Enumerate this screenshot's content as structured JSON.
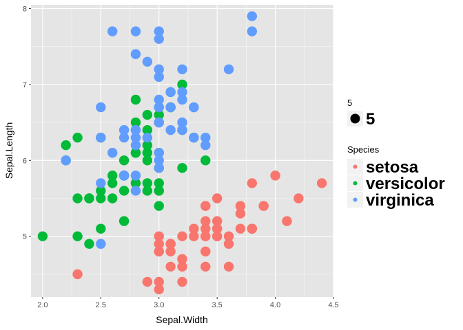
{
  "chart_data": {
    "type": "scatter",
    "xlabel": "Sepal.Width",
    "ylabel": "Sepal.Length",
    "xlim": [
      1.9,
      4.5
    ],
    "ylim": [
      4.2,
      8.05
    ],
    "x_ticks": [
      "2.0",
      "2.5",
      "3.0",
      "3.5",
      "4.0",
      "4.5"
    ],
    "y_ticks": [
      "5",
      "6",
      "7",
      "8"
    ],
    "grid": true,
    "panel_background": "#e5e5e5",
    "grid_color": "#ffffff",
    "legend_position": "right",
    "size_legend": {
      "title": "5",
      "label": "5"
    },
    "color_legend_title": "Species",
    "series": [
      {
        "name": "setosa",
        "color": "#F8766D",
        "points": [
          [
            3.5,
            5.1
          ],
          [
            3.0,
            4.9
          ],
          [
            3.2,
            4.7
          ],
          [
            3.1,
            4.6
          ],
          [
            3.6,
            5.0
          ],
          [
            3.9,
            5.4
          ],
          [
            3.4,
            4.6
          ],
          [
            3.4,
            5.0
          ],
          [
            2.9,
            4.4
          ],
          [
            3.1,
            4.9
          ],
          [
            3.7,
            5.4
          ],
          [
            3.4,
            4.8
          ],
          [
            3.0,
            4.8
          ],
          [
            3.0,
            4.3
          ],
          [
            4.0,
            5.8
          ],
          [
            4.4,
            5.7
          ],
          [
            3.9,
            5.4
          ],
          [
            3.5,
            5.1
          ],
          [
            3.8,
            5.7
          ],
          [
            3.8,
            5.1
          ],
          [
            3.4,
            5.4
          ],
          [
            3.7,
            5.1
          ],
          [
            3.6,
            4.6
          ],
          [
            3.3,
            5.1
          ],
          [
            3.4,
            4.8
          ],
          [
            3.0,
            5.0
          ],
          [
            3.4,
            5.0
          ],
          [
            3.5,
            5.2
          ],
          [
            3.4,
            5.2
          ],
          [
            3.2,
            4.7
          ],
          [
            3.1,
            4.8
          ],
          [
            3.4,
            5.4
          ],
          [
            4.1,
            5.2
          ],
          [
            4.2,
            5.5
          ],
          [
            3.1,
            4.9
          ],
          [
            3.2,
            5.0
          ],
          [
            3.5,
            5.5
          ],
          [
            3.6,
            4.9
          ],
          [
            3.0,
            4.4
          ],
          [
            3.4,
            5.1
          ],
          [
            3.5,
            5.0
          ],
          [
            2.3,
            4.5
          ],
          [
            3.2,
            4.4
          ],
          [
            3.5,
            5.0
          ],
          [
            3.8,
            5.1
          ],
          [
            3.0,
            4.8
          ],
          [
            3.8,
            5.1
          ],
          [
            3.2,
            4.6
          ],
          [
            3.7,
            5.3
          ],
          [
            3.3,
            5.0
          ]
        ]
      },
      {
        "name": "versicolor",
        "color": "#00BA38",
        "points": [
          [
            3.2,
            7.0
          ],
          [
            3.2,
            6.4
          ],
          [
            3.1,
            6.9
          ],
          [
            2.3,
            5.5
          ],
          [
            2.8,
            6.5
          ],
          [
            2.8,
            5.7
          ],
          [
            3.3,
            6.3
          ],
          [
            2.4,
            4.9
          ],
          [
            2.9,
            6.6
          ],
          [
            2.7,
            5.2
          ],
          [
            2.0,
            5.0
          ],
          [
            3.0,
            5.9
          ],
          [
            2.2,
            6.0
          ],
          [
            2.9,
            6.1
          ],
          [
            2.9,
            5.6
          ],
          [
            3.1,
            6.7
          ],
          [
            3.0,
            5.6
          ],
          [
            2.7,
            5.8
          ],
          [
            2.2,
            6.2
          ],
          [
            2.5,
            5.6
          ],
          [
            3.2,
            5.9
          ],
          [
            2.8,
            6.1
          ],
          [
            2.5,
            6.3
          ],
          [
            2.8,
            6.1
          ],
          [
            2.9,
            6.4
          ],
          [
            3.0,
            6.6
          ],
          [
            2.8,
            6.8
          ],
          [
            3.0,
            6.7
          ],
          [
            2.9,
            6.0
          ],
          [
            2.6,
            5.7
          ],
          [
            2.4,
            5.5
          ],
          [
            2.4,
            5.5
          ],
          [
            2.7,
            5.8
          ],
          [
            2.7,
            6.0
          ],
          [
            3.0,
            5.4
          ],
          [
            3.4,
            6.0
          ],
          [
            3.1,
            6.7
          ],
          [
            2.3,
            6.3
          ],
          [
            3.0,
            5.6
          ],
          [
            2.5,
            5.5
          ],
          [
            2.6,
            5.5
          ],
          [
            3.0,
            6.1
          ],
          [
            2.6,
            5.8
          ],
          [
            2.3,
            5.0
          ],
          [
            2.7,
            5.6
          ],
          [
            3.0,
            5.7
          ],
          [
            2.9,
            5.7
          ],
          [
            2.9,
            6.2
          ],
          [
            2.5,
            5.1
          ],
          [
            2.8,
            5.7
          ]
        ]
      },
      {
        "name": "virginica",
        "color": "#619CFF",
        "points": [
          [
            3.3,
            6.3
          ],
          [
            2.7,
            5.8
          ],
          [
            3.0,
            7.1
          ],
          [
            2.9,
            6.3
          ],
          [
            3.0,
            6.5
          ],
          [
            3.0,
            7.6
          ],
          [
            2.5,
            4.9
          ],
          [
            2.9,
            7.3
          ],
          [
            2.5,
            6.7
          ],
          [
            3.6,
            7.2
          ],
          [
            3.2,
            6.5
          ],
          [
            2.7,
            6.4
          ],
          [
            3.0,
            6.8
          ],
          [
            2.5,
            5.7
          ],
          [
            2.8,
            5.8
          ],
          [
            3.2,
            6.4
          ],
          [
            3.0,
            6.5
          ],
          [
            3.8,
            7.7
          ],
          [
            2.6,
            7.7
          ],
          [
            2.2,
            6.0
          ],
          [
            3.2,
            6.9
          ],
          [
            2.8,
            5.6
          ],
          [
            2.8,
            7.7
          ],
          [
            2.7,
            6.3
          ],
          [
            3.3,
            6.7
          ],
          [
            3.2,
            7.2
          ],
          [
            2.8,
            6.2
          ],
          [
            3.0,
            6.1
          ],
          [
            2.8,
            6.4
          ],
          [
            3.0,
            7.2
          ],
          [
            2.8,
            7.4
          ],
          [
            3.8,
            7.9
          ],
          [
            2.8,
            6.4
          ],
          [
            2.8,
            6.3
          ],
          [
            2.6,
            6.1
          ],
          [
            3.0,
            7.7
          ],
          [
            3.4,
            6.3
          ],
          [
            3.1,
            6.4
          ],
          [
            3.0,
            6.0
          ],
          [
            3.1,
            6.9
          ],
          [
            3.1,
            6.7
          ],
          [
            3.1,
            6.9
          ],
          [
            2.7,
            5.8
          ],
          [
            3.2,
            6.8
          ],
          [
            3.3,
            6.7
          ],
          [
            3.0,
            6.7
          ],
          [
            2.5,
            6.3
          ],
          [
            3.0,
            6.5
          ],
          [
            3.4,
            6.2
          ],
          [
            3.0,
            5.9
          ]
        ]
      }
    ]
  }
}
